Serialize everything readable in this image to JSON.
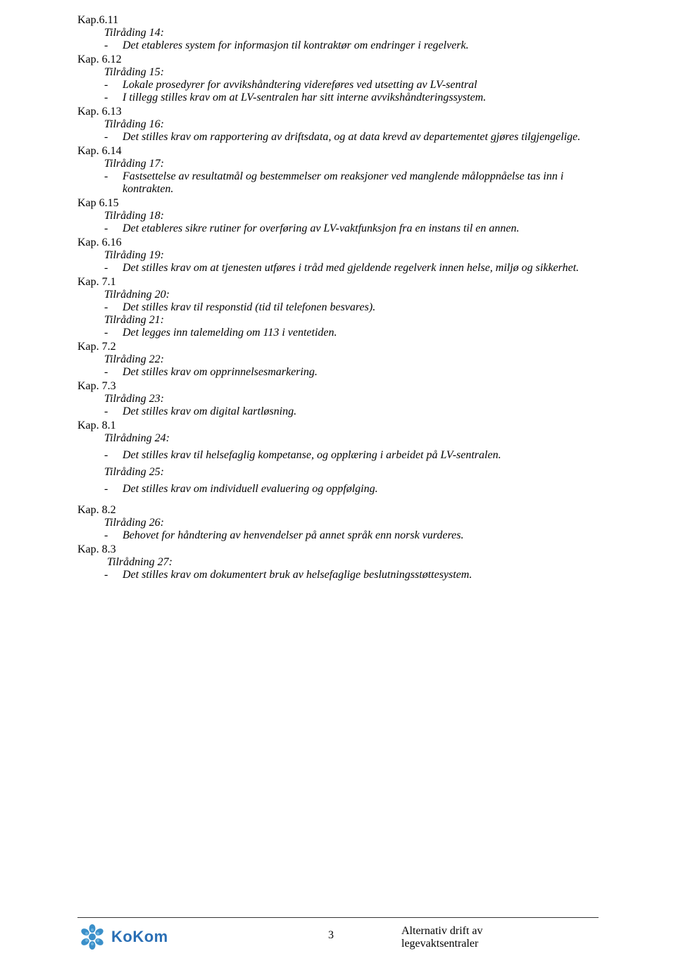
{
  "sections": [
    {
      "kap": "Kap.6.11",
      "items": [
        {
          "label": "Tilråding 14:",
          "bullets": [
            "Det etableres system for informasjon til kontraktør om endringer i regelverk."
          ]
        }
      ]
    },
    {
      "kap": "Kap. 6.12",
      "items": [
        {
          "label": "Tilråding 15:",
          "bullets": [
            "Lokale prosedyrer for avvikshåndtering videreføres ved utsetting av LV-sentral",
            "I tillegg stilles krav om at LV-sentralen har sitt interne avvikshåndteringssystem."
          ]
        }
      ]
    },
    {
      "kap": "Kap. 6.13",
      "items": [
        {
          "label": "Tilråding 16:",
          "bullets": [
            "Det stilles krav om rapportering av driftsdata, og at data krevd av departementet gjøres tilgjengelige."
          ]
        }
      ]
    },
    {
      "kap": "Kap. 6.14",
      "items": [
        {
          "label": "Tilråding 17:",
          "bullets": [
            "Fastsettelse av resultatmål og bestemmelser om reaksjoner ved manglende måloppnåelse tas inn i kontrakten."
          ]
        }
      ]
    },
    {
      "kap": "Kap 6.15",
      "items": [
        {
          "label": "Tilråding 18:",
          "bullets": [
            "Det etableres sikre rutiner for overføring av LV-vaktfunksjon fra en instans til en annen."
          ]
        }
      ]
    },
    {
      "kap": "Kap. 6.16",
      "items": [
        {
          "label": "Tilråding 19:",
          "bullets": [
            "Det stilles krav om at tjenesten utføres i tråd med gjeldende regelverk innen helse, miljø og sikkerhet."
          ]
        }
      ]
    },
    {
      "kap": "Kap. 7.1",
      "items": [
        {
          "label": "Tilrådning 20:",
          "bullets": [
            "Det stilles krav til responstid (tid til telefonen besvares)."
          ]
        },
        {
          "label": "Tilråding 21:",
          "bullets": [
            "Det legges inn talemelding om 113 i ventetiden."
          ]
        }
      ]
    },
    {
      "kap": "Kap. 7.2",
      "items": [
        {
          "label": "Tilråding 22:",
          "bullets": [
            "Det stilles krav om opprinnelsesmarkering."
          ]
        }
      ]
    },
    {
      "kap": "Kap. 7.3",
      "items": [
        {
          "label": "Tilråding 23:",
          "bullets": [
            "Det stilles krav om digital kartløsning."
          ]
        }
      ]
    },
    {
      "kap": "Kap. 8.1",
      "gapBefore": false,
      "items": [
        {
          "label": "Tilrådning 24:",
          "gapAfter": true,
          "bullets": [
            "Det stilles krav til helsefaglig kompetanse, og opplæring i arbeidet på LV-sentralen."
          ]
        },
        {
          "label": "Tilråding 25:",
          "gapBefore": true,
          "gapAfter": true,
          "bullets": [
            "Det stilles krav om individuell evaluering og oppfølging."
          ]
        }
      ]
    },
    {
      "kap": "Kap. 8.2",
      "gapBefore": true,
      "items": [
        {
          "label": "Tilråding 26:",
          "bullets": [
            "Behovet for håndtering av henvendelser på annet språk enn norsk vurderes."
          ]
        }
      ]
    },
    {
      "kap": "Kap. 8.3",
      "items": [
        {
          "label": "Tilrådning 27:",
          "indent": true,
          "bullets": [
            "Det stilles krav om dokumentert bruk av helsefaglige beslutningsstøttesystem."
          ]
        }
      ]
    }
  ],
  "footer": {
    "logo_text": "KoKom",
    "page_number": "3",
    "right_line1": "Alternativ drift av",
    "right_line2": "legevaktsentraler",
    "logo_color": "#3a8fc9",
    "logo_text_color": "#2a6fb5"
  }
}
